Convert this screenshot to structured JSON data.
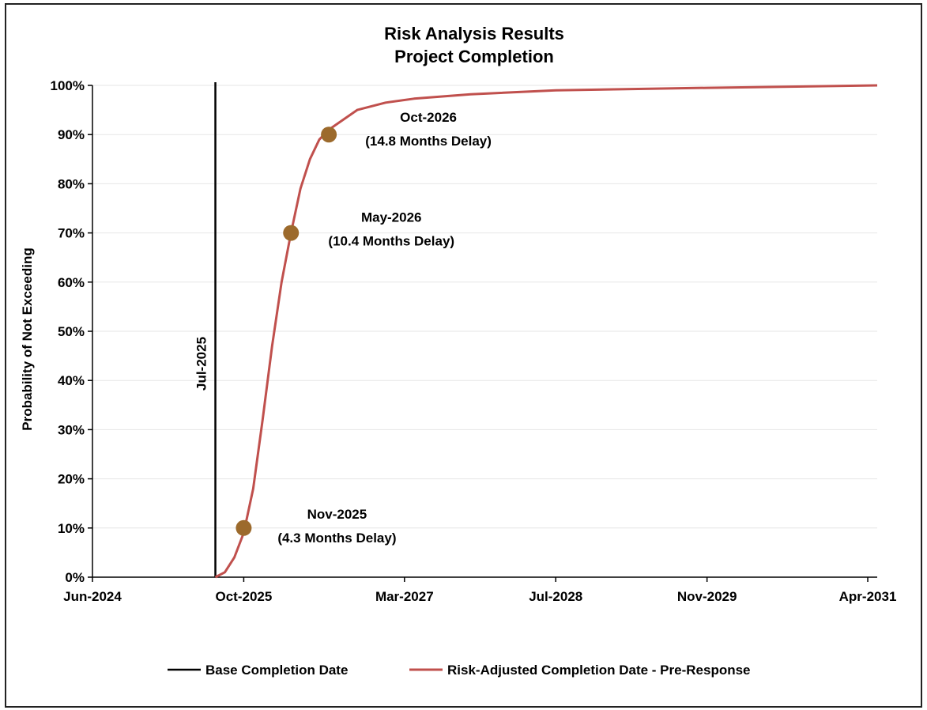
{
  "chart_data": {
    "type": "line",
    "title": "Risk Analysis Results",
    "subtitle": "Project  Completion",
    "xlabel": "",
    "ylabel": "Probability of Not Exceeding",
    "x_tick_labels": [
      "Jun-2024",
      "Oct-2025",
      "Mar-2027",
      "Jul-2028",
      "Nov-2029",
      "Apr-2031"
    ],
    "x_ticks": [
      "2024-06",
      "2025-10",
      "2027-03",
      "2028-07",
      "2029-11",
      "2031-04"
    ],
    "xlim": [
      "2024-06",
      "2031-05"
    ],
    "y_tick_labels": [
      "0%",
      "10%",
      "20%",
      "30%",
      "40%",
      "50%",
      "60%",
      "70%",
      "80%",
      "90%",
      "100%"
    ],
    "ylim": [
      0,
      100
    ],
    "grid": "horizontal",
    "legend_position": "bottom",
    "colors": {
      "base": "#000000",
      "risk": "#c0504d",
      "marker": "#9c6a2c",
      "grid": "#e6e6e6"
    },
    "series": [
      {
        "name": "Base Completion Date",
        "kind": "vertical-line",
        "x": "2025-07",
        "label": "Jul-2025"
      },
      {
        "name": "Risk-Adjusted Completion Date - Pre-Response",
        "kind": "line",
        "points": [
          [
            "2025-07",
            0
          ],
          [
            "2025-08",
            1
          ],
          [
            "2025-09",
            4
          ],
          [
            "2025-10",
            9
          ],
          [
            "2025-11",
            18
          ],
          [
            "2025-12",
            32
          ],
          [
            "2026-01",
            47
          ],
          [
            "2026-02",
            60
          ],
          [
            "2026-03",
            70
          ],
          [
            "2026-04",
            79
          ],
          [
            "2026-05",
            85
          ],
          [
            "2026-06",
            89
          ],
          [
            "2026-07",
            91
          ],
          [
            "2026-10",
            95
          ],
          [
            "2027-01",
            96.5
          ],
          [
            "2027-04",
            97.3
          ],
          [
            "2027-10",
            98.2
          ],
          [
            "2028-07",
            99
          ],
          [
            "2029-11",
            99.5
          ],
          [
            "2031-05",
            100
          ]
        ]
      }
    ],
    "markers": [
      {
        "x": "2025-10",
        "y": 10,
        "label_1": "Nov-2025",
        "label_2": "(4.3 Months Delay)"
      },
      {
        "x": "2026-03",
        "y": 70,
        "label_1": "May-2026",
        "label_2": "(10.4 Months Delay)"
      },
      {
        "x": "2026-07",
        "y": 90,
        "label_1": "Oct-2026",
        "label_2": "(14.8 Months Delay)"
      }
    ]
  }
}
